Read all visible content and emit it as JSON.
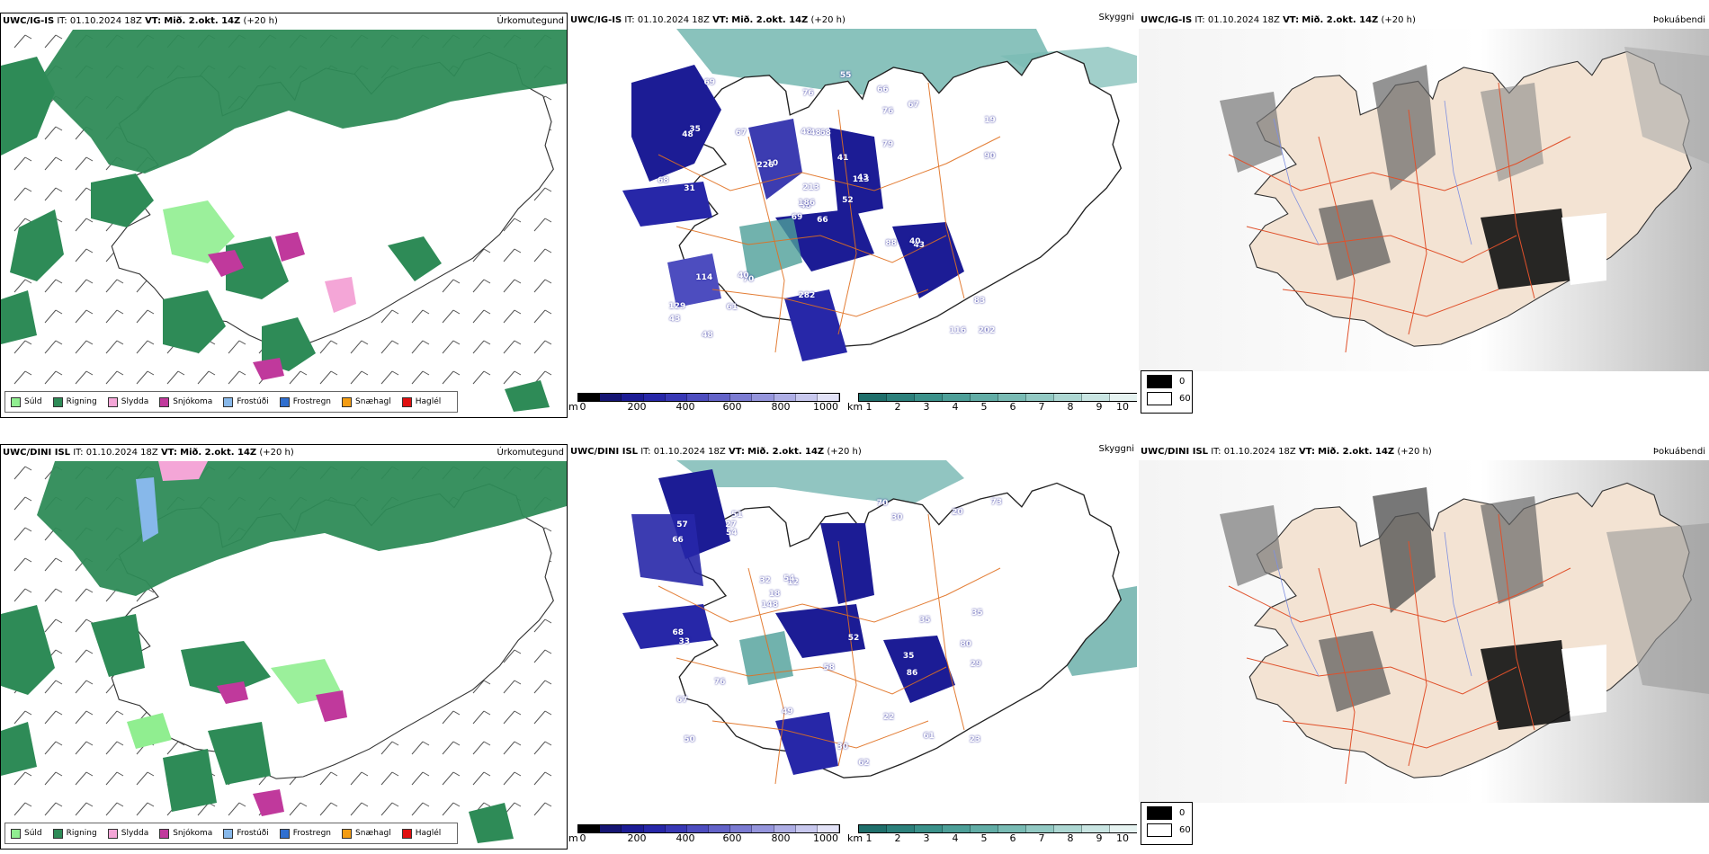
{
  "panels": [
    {
      "id": "precip-top",
      "model": "UWC/IG-IS",
      "it_label": "IT:",
      "it_value": "01.10.2024 18Z",
      "vt_label": "VT:",
      "vt_value": "Mið. 2.okt. 14Z",
      "lead": "(+20 h)",
      "product": "Úrkomutegund"
    },
    {
      "id": "cloud-top",
      "model": "UWC/IG-IS",
      "it_label": "IT:",
      "it_value": "01.10.2024 18Z",
      "vt_label": "VT:",
      "vt_value": "Mið. 2.okt. 14Z",
      "lead": "(+20 h)",
      "product": "Skyggni"
    },
    {
      "id": "fog-top",
      "model": "UWC/IG-IS",
      "it_label": "IT:",
      "it_value": "01.10.2024 18Z",
      "vt_label": "VT:",
      "vt_value": "Mið. 2.okt. 14Z",
      "lead": "(+20 h)",
      "product": "Þokuábendi"
    },
    {
      "id": "precip-bottom",
      "model": "UWC/DINI ISL",
      "it_label": "IT:",
      "it_value": "01.10.2024 18Z",
      "vt_label": "VT:",
      "vt_value": "Mið. 2.okt. 14Z",
      "lead": "(+20 h)",
      "product": "Úrkomutegund"
    },
    {
      "id": "cloud-bottom",
      "model": "UWC/DINI ISL",
      "it_label": "IT:",
      "it_value": "01.10.2024 18Z",
      "vt_label": "VT:",
      "vt_value": "Mið. 2.okt. 14Z",
      "lead": "(+20 h)",
      "product": "Skyggni"
    },
    {
      "id": "fog-bottom",
      "model": "UWC/DINI ISL",
      "it_label": "IT:",
      "it_value": "01.10.2024 18Z",
      "vt_label": "VT:",
      "vt_value": "Mið. 2.okt. 14Z",
      "lead": "(+20 h)",
      "product": "Þokuábendi"
    }
  ],
  "precip_legend": [
    {
      "label": "Súld",
      "color": "#90ee90"
    },
    {
      "label": "Rigning",
      "color": "#2e8b57"
    },
    {
      "label": "Slydda",
      "color": "#f4a6d7"
    },
    {
      "label": "Snjókoma",
      "color": "#c0399c"
    },
    {
      "label": "Frostúði",
      "color": "#87b8ea"
    },
    {
      "label": "Frostregn",
      "color": "#2f6fd0"
    },
    {
      "label": "Snæhagl",
      "color": "#f39c12"
    },
    {
      "label": "Haglél",
      "color": "#e01010"
    }
  ],
  "ceiling_scale": {
    "unit": "m",
    "ticks": [
      "0",
      "200",
      "400",
      "600",
      "800",
      "1000"
    ],
    "colors": [
      "#000000",
      "#151573",
      "#1c1c95",
      "#2727a8",
      "#3838b5",
      "#4d4dbf",
      "#6363c8",
      "#7b7bd2",
      "#9595dc",
      "#aeaee5",
      "#c8c8ee",
      "#e2e2f7"
    ]
  },
  "visibility_scale": {
    "unit": "km",
    "ticks": [
      "1",
      "2",
      "3",
      "4",
      "5",
      "6",
      "7",
      "8",
      "9",
      "10"
    ],
    "colors": [
      "#1f6f6b",
      "#2c807b",
      "#3b918a",
      "#4d9f98",
      "#62ada6",
      "#79bbb4",
      "#92c9c3",
      "#add7d2",
      "#c9e5e2",
      "#e6f3f1"
    ]
  },
  "fog_scale": {
    "values": [
      "0",
      "60"
    ],
    "colors": [
      "#000000",
      "#ffffff"
    ]
  },
  "ceiling_labels_top": [
    "66",
    "48",
    "48",
    "129",
    "113",
    "70",
    "66",
    "68",
    "76",
    "52",
    "69",
    "202",
    "31",
    "19",
    "69",
    "79",
    "48",
    "48",
    "41",
    "114",
    "10",
    "43",
    "61",
    "48",
    "43",
    "43",
    "35",
    "76",
    "68",
    "88",
    "90",
    "186",
    "282",
    "213",
    "67",
    "67",
    "40",
    "116",
    "83",
    "40",
    "55",
    "226"
  ],
  "ceiling_labels_bottom": [
    "35",
    "80",
    "50",
    "51",
    "12",
    "61",
    "67",
    "30",
    "32",
    "62",
    "66",
    "68",
    "57",
    "23",
    "49",
    "35",
    "58",
    "52",
    "54",
    "76",
    "73",
    "20",
    "148",
    "29",
    "70",
    "27",
    "86",
    "33",
    "54",
    "35",
    "30",
    "22",
    "18"
  ]
}
